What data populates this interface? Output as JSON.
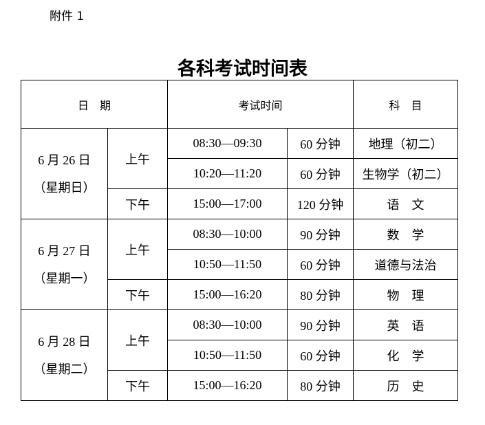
{
  "attachment_label": "附件 1",
  "title": "各科考试时间表",
  "headers": {
    "date": "日　期",
    "time": "考试时间",
    "subject": "科　目"
  },
  "days": [
    {
      "date": "6 月 26 日",
      "weekday": "（星期日）",
      "sessions": [
        {
          "period": "上午",
          "exams": [
            {
              "time": "08:30—09:30",
              "duration": "60 分钟",
              "subject": "地理（初二）"
            },
            {
              "time": "10:20—11:20",
              "duration": "60 分钟",
              "subject": "生物学（初二）"
            }
          ]
        },
        {
          "period": "下午",
          "exams": [
            {
              "time": "15:00—17:00",
              "duration": "120 分钟",
              "subject": "语　文"
            }
          ]
        }
      ]
    },
    {
      "date": "6 月 27 日",
      "weekday": "（星期一）",
      "sessions": [
        {
          "period": "上午",
          "exams": [
            {
              "time": "08:30—10:00",
              "duration": "90 分钟",
              "subject": "数　学"
            },
            {
              "time": "10:50—11:50",
              "duration": "60 分钟",
              "subject": "道德与法治"
            }
          ]
        },
        {
          "period": "下午",
          "exams": [
            {
              "time": "15:00—16:20",
              "duration": "80 分钟",
              "subject": "物　理"
            }
          ]
        }
      ]
    },
    {
      "date": "6 月 28 日",
      "weekday": "（星期二）",
      "sessions": [
        {
          "period": "上午",
          "exams": [
            {
              "time": "08:30—10:00",
              "duration": "90 分钟",
              "subject": "英　语"
            },
            {
              "time": "10:50—11:50",
              "duration": "60 分钟",
              "subject": "化　学"
            }
          ]
        },
        {
          "period": "下午",
          "exams": [
            {
              "time": "15:00—16:20",
              "duration": "80 分钟",
              "subject": "历　史"
            }
          ]
        }
      ]
    }
  ]
}
